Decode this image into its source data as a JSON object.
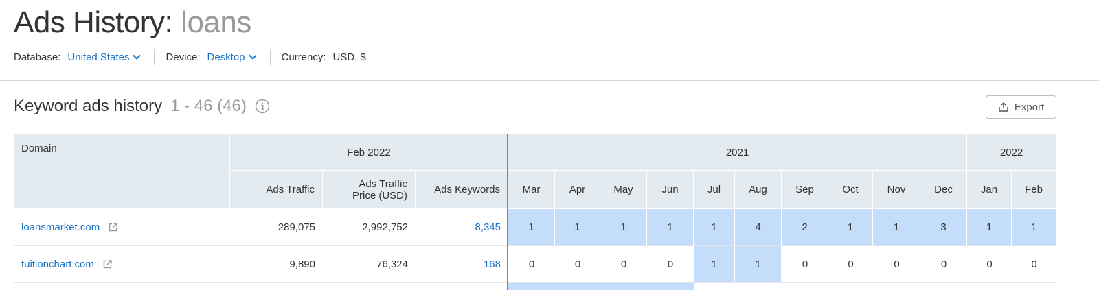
{
  "header": {
    "title": "Ads History:",
    "query": "loans"
  },
  "filters": {
    "database_label": "Database:",
    "database_value": "United States",
    "device_label": "Device:",
    "device_value": "Desktop",
    "currency_label": "Currency:",
    "currency_value": "USD, $"
  },
  "section": {
    "title": "Keyword ads history",
    "count": "1 - 46 (46)",
    "export_label": "Export"
  },
  "table": {
    "domain_header": "Domain",
    "group_feb2022": "Feb 2022",
    "group_2021": "2021",
    "group_2022": "2022",
    "metric_headers": [
      "Ads Traffic",
      "Ads Traffic\nPrice (USD)",
      "Ads Keywords"
    ],
    "months": [
      "Mar",
      "Apr",
      "May",
      "Jun",
      "Jul",
      "Aug",
      "Sep",
      "Oct",
      "Nov",
      "Dec",
      "Jan",
      "Feb"
    ],
    "rows": [
      {
        "domain": "loansmarket.com",
        "ads_traffic": "289,075",
        "ads_traffic_price": "2,992,752",
        "ads_keywords": "8,345",
        "months": [
          "1",
          "1",
          "1",
          "1",
          "1",
          "4",
          "2",
          "1",
          "1",
          "3",
          "1",
          "1"
        ],
        "active": [
          true,
          true,
          true,
          true,
          true,
          true,
          true,
          true,
          true,
          true,
          true,
          true
        ]
      },
      {
        "domain": "tuitionchart.com",
        "ads_traffic": "9,890",
        "ads_traffic_price": "76,324",
        "ads_keywords": "168",
        "months": [
          "0",
          "0",
          "0",
          "0",
          "1",
          "1",
          "0",
          "0",
          "0",
          "0",
          "0",
          "0"
        ],
        "active": [
          false,
          false,
          false,
          false,
          true,
          true,
          false,
          false,
          false,
          false,
          false,
          false
        ]
      }
    ]
  },
  "colors": {
    "link": "#1a73c7",
    "header_bg": "#e3eaf0",
    "active_cell": "#c3ddfa"
  }
}
